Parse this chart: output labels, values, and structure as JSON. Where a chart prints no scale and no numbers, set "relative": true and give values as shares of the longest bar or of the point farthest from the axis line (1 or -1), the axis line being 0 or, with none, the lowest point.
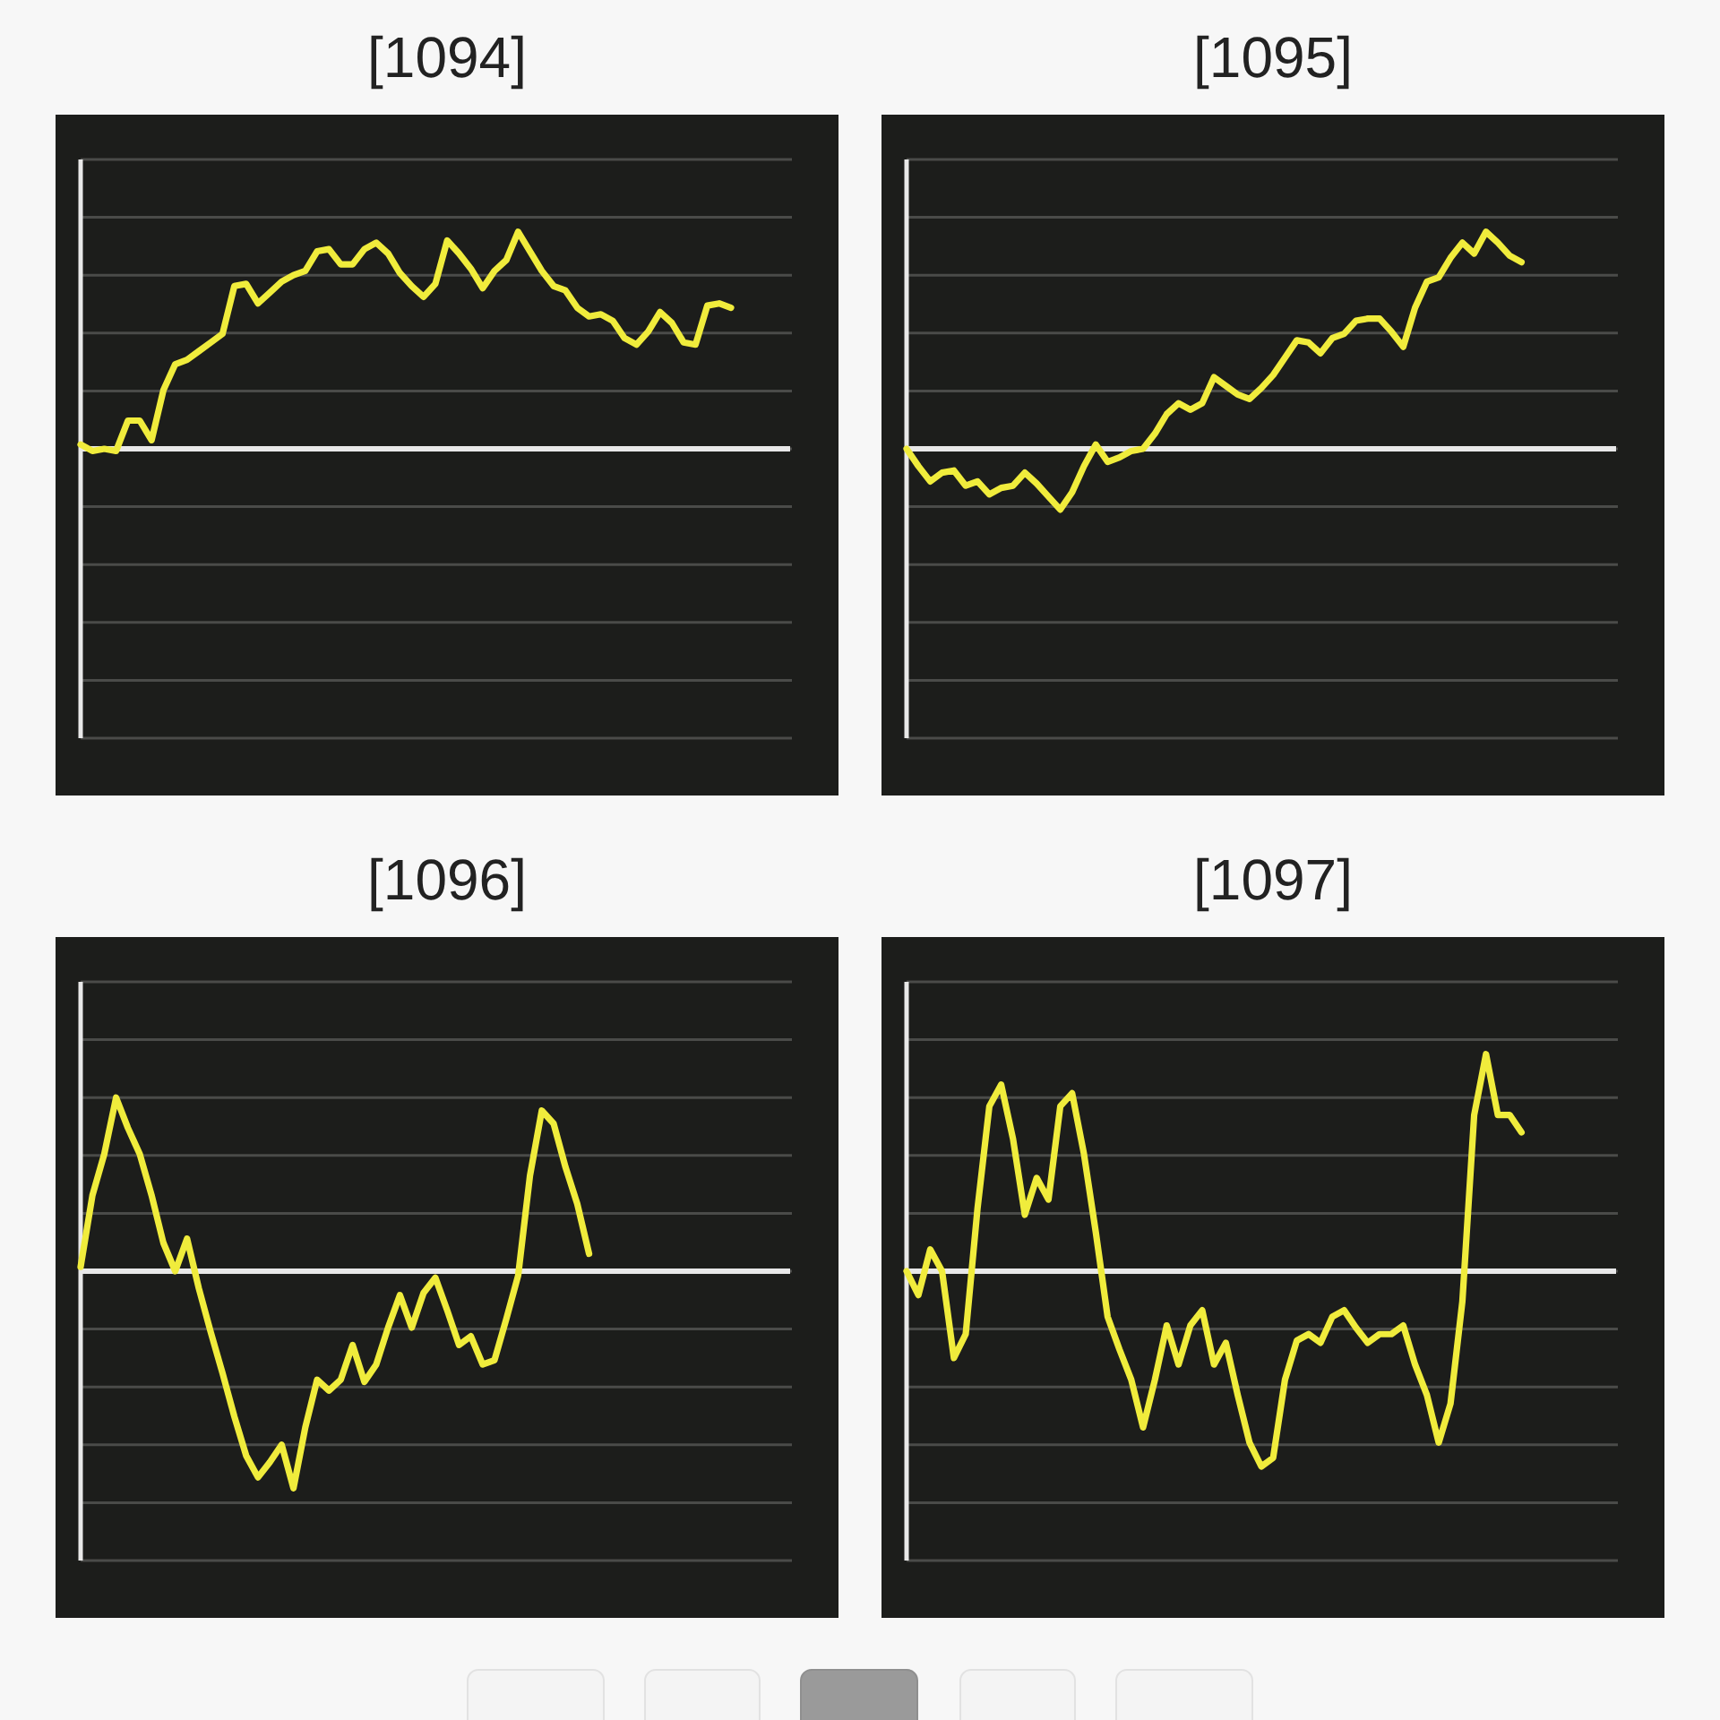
{
  "chart_data": [
    {
      "type": "line",
      "title": "[1094]",
      "relative": true,
      "grid": "y",
      "categories": [
        null,
        null,
        null,
        null,
        null,
        null,
        null,
        null,
        null,
        null,
        null,
        null,
        null,
        null,
        null,
        null,
        null,
        null,
        null,
        null,
        null,
        null,
        null,
        null,
        null,
        null,
        null,
        null,
        null,
        null,
        null,
        null,
        null,
        null,
        null,
        null,
        null,
        null,
        null,
        null,
        null,
        null,
        null,
        null,
        null,
        null,
        null,
        null,
        null,
        null,
        null,
        null,
        null,
        null,
        null,
        null,
        null,
        null,
        null,
        null,
        null
      ],
      "series": [
        {
          "color": "#f0ec3c",
          "values": [
            0.02,
            -0.01,
            0,
            -0.01,
            0.13,
            0.13,
            0.04,
            0.27,
            0.39,
            0.41,
            0.45,
            0.49,
            0.53,
            0.75,
            0.76,
            0.67,
            0.72,
            0.77,
            0.8,
            0.82,
            0.91,
            0.92,
            0.85,
            0.85,
            0.92,
            0.95,
            0.9,
            0.81,
            0.75,
            0.7,
            0.76,
            0.96,
            0.9,
            0.83,
            0.74,
            0.82,
            0.87,
            1,
            0.91,
            0.82,
            0.75,
            0.73,
            0.65,
            0.61,
            0.62,
            0.59,
            0.51,
            0.48,
            0.54,
            0.63,
            0.58,
            0.49,
            0.48,
            0.66,
            0.67,
            0.65,
            null,
            null,
            null,
            null,
            null
          ]
        }
      ]
    },
    {
      "type": "line",
      "title": "[1095]",
      "relative": true,
      "grid": "y",
      "categories": [
        null,
        null,
        null,
        null,
        null,
        null,
        null,
        null,
        null,
        null,
        null,
        null,
        null,
        null,
        null,
        null,
        null,
        null,
        null,
        null,
        null,
        null,
        null,
        null,
        null,
        null,
        null,
        null,
        null,
        null,
        null,
        null,
        null,
        null,
        null,
        null,
        null,
        null,
        null,
        null,
        null,
        null,
        null,
        null,
        null,
        null,
        null,
        null,
        null,
        null,
        null,
        null,
        null,
        null,
        null,
        null,
        null,
        null,
        null,
        null,
        null
      ],
      "series": [
        {
          "color": "#f0ec3c",
          "values": [
            0,
            -0.08,
            -0.15,
            -0.11,
            -0.1,
            -0.17,
            -0.15,
            -0.21,
            -0.18,
            -0.17,
            -0.11,
            -0.16,
            -0.22,
            -0.28,
            -0.2,
            -0.08,
            0.02,
            -0.06,
            -0.04,
            -0.01,
            0,
            0.07,
            0.16,
            0.21,
            0.18,
            0.21,
            0.33,
            0.29,
            0.25,
            0.23,
            0.28,
            0.34,
            0.42,
            0.5,
            0.49,
            0.44,
            0.51,
            0.53,
            0.59,
            0.6,
            0.6,
            0.54,
            0.47,
            0.65,
            0.77,
            0.79,
            0.88,
            0.95,
            0.9,
            1,
            0.95,
            0.89,
            0.86,
            null,
            null,
            null,
            null,
            null,
            null,
            null,
            null
          ]
        }
      ]
    },
    {
      "type": "line",
      "title": "[1096]",
      "relative": true,
      "grid": "y",
      "categories": [
        null,
        null,
        null,
        null,
        null,
        null,
        null,
        null,
        null,
        null,
        null,
        null,
        null,
        null,
        null,
        null,
        null,
        null,
        null,
        null,
        null,
        null,
        null,
        null,
        null,
        null,
        null,
        null,
        null,
        null,
        null,
        null,
        null,
        null,
        null,
        null,
        null,
        null,
        null,
        null,
        null,
        null,
        null,
        null,
        null,
        null,
        null,
        null,
        null,
        null,
        null,
        null,
        null,
        null,
        null,
        null,
        null,
        null,
        null,
        null,
        null
      ],
      "series": [
        {
          "color": "#f0ec3c",
          "values": [
            0.02,
            0.35,
            0.54,
            0.8,
            0.66,
            0.54,
            0.35,
            0.13,
            0,
            0.15,
            -0.08,
            -0.28,
            -0.47,
            -0.67,
            -0.85,
            -0.95,
            -0.88,
            -0.8,
            -1,
            -0.72,
            -0.5,
            -0.55,
            -0.5,
            -0.34,
            -0.51,
            -0.43,
            -0.26,
            -0.11,
            -0.26,
            -0.1,
            -0.03,
            -0.18,
            -0.34,
            -0.3,
            -0.43,
            -0.41,
            -0.22,
            -0.02,
            0.44,
            0.74,
            0.68,
            0.48,
            0.31,
            0.08,
            null,
            null,
            null,
            null,
            null,
            null,
            null,
            null,
            null,
            null,
            null,
            null,
            null,
            null,
            null,
            null,
            null
          ]
        }
      ]
    },
    {
      "type": "line",
      "title": "[1097]",
      "relative": true,
      "grid": "y",
      "categories": [
        null,
        null,
        null,
        null,
        null,
        null,
        null,
        null,
        null,
        null,
        null,
        null,
        null,
        null,
        null,
        null,
        null,
        null,
        null,
        null,
        null,
        null,
        null,
        null,
        null,
        null,
        null,
        null,
        null,
        null,
        null,
        null,
        null,
        null,
        null,
        null,
        null,
        null,
        null,
        null,
        null,
        null,
        null,
        null,
        null,
        null,
        null,
        null,
        null,
        null,
        null,
        null,
        null,
        null,
        null,
        null,
        null,
        null,
        null,
        null,
        null
      ],
      "series": [
        {
          "color": "#f0ec3c",
          "values": [
            0,
            -0.11,
            0.1,
            0,
            -0.4,
            -0.29,
            0.29,
            0.76,
            0.86,
            0.61,
            0.26,
            0.43,
            0.33,
            0.76,
            0.82,
            0.54,
            0.18,
            -0.21,
            -0.36,
            -0.5,
            -0.72,
            -0.5,
            -0.25,
            -0.43,
            -0.25,
            -0.18,
            -0.43,
            -0.33,
            -0.57,
            -0.79,
            -0.9,
            -0.86,
            -0.5,
            -0.32,
            -0.29,
            -0.33,
            -0.21,
            -0.18,
            -0.26,
            -0.33,
            -0.29,
            -0.29,
            -0.25,
            -0.43,
            -0.57,
            -0.79,
            -0.61,
            -0.14,
            0.72,
            1,
            0.72,
            0.72,
            0.64,
            null,
            null,
            null,
            null,
            null,
            null,
            null,
            null
          ]
        }
      ]
    }
  ]
}
